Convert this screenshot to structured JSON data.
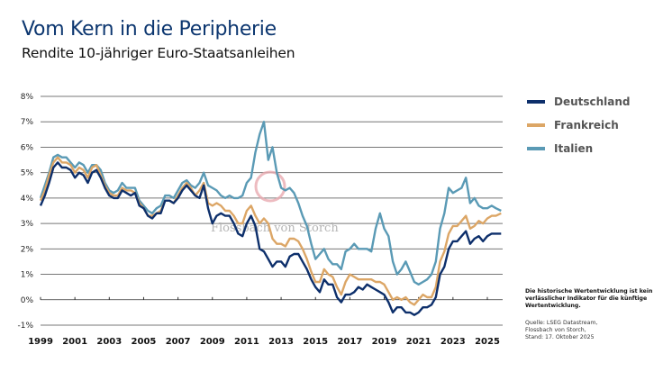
{
  "header": {
    "title": "Vom Kern in die Peripherie",
    "subtitle": "Rendite 10-jähriger Euro-Staatsanleihen"
  },
  "legend": [
    {
      "name": "Deutschland",
      "color": "#0d2f6b"
    },
    {
      "name": "Frankreich",
      "color": "#dca666"
    },
    {
      "name": "Italien",
      "color": "#5a9ab5"
    }
  ],
  "notes": {
    "disclaimer": "Die historische Wertentwicklung ist kein verlässlicher Indikator für die künftige Wertentwicklung.",
    "source_line1": "Quelle: LSEG Datastream,",
    "source_line2": "Flossbach von Storch,",
    "source_line3": "Stand: 17. Oktober 2025"
  },
  "watermark": "Flossbach von Storch",
  "chart_data": {
    "type": "line",
    "title": "Vom Kern in die Peripherie",
    "subtitle": "Rendite 10-jähriger Euro-Staatsanleihen",
    "xlabel": "",
    "ylabel": "",
    "xlim": [
      1999,
      2025.8
    ],
    "ylim": [
      -1,
      8
    ],
    "grid": true,
    "legend_position": "right",
    "x_ticks": [
      "1999",
      "2001",
      "2003",
      "2005",
      "2007",
      "2009",
      "2011",
      "2013",
      "2015",
      "2017",
      "2019",
      "2021",
      "2023",
      "2025"
    ],
    "y_ticks": [
      "8%",
      "7%",
      "6%",
      "5%",
      "4%",
      "3%",
      "2%",
      "1%",
      "0%",
      "-1%"
    ],
    "y_tick_values": [
      8,
      7,
      6,
      5,
      4,
      3,
      2,
      1,
      0,
      -1
    ],
    "x": [
      1999.0,
      1999.25,
      1999.5,
      1999.75,
      2000.0,
      2000.25,
      2000.5,
      2000.75,
      2001.0,
      2001.25,
      2001.5,
      2001.75,
      2002.0,
      2002.25,
      2002.5,
      2002.75,
      2003.0,
      2003.25,
      2003.5,
      2003.75,
      2004.0,
      2004.25,
      2004.5,
      2004.75,
      2005.0,
      2005.25,
      2005.5,
      2005.75,
      2006.0,
      2006.25,
      2006.5,
      2006.75,
      2007.0,
      2007.25,
      2007.5,
      2007.75,
      2008.0,
      2008.25,
      2008.5,
      2008.75,
      2009.0,
      2009.25,
      2009.5,
      2009.75,
      2010.0,
      2010.25,
      2010.5,
      2010.75,
      2011.0,
      2011.25,
      2011.5,
      2011.75,
      2012.0,
      2012.25,
      2012.5,
      2012.75,
      2013.0,
      2013.25,
      2013.5,
      2013.75,
      2014.0,
      2014.25,
      2014.5,
      2014.75,
      2015.0,
      2015.25,
      2015.5,
      2015.75,
      2016.0,
      2016.25,
      2016.5,
      2016.75,
      2017.0,
      2017.25,
      2017.5,
      2017.75,
      2018.0,
      2018.25,
      2018.5,
      2018.75,
      2019.0,
      2019.25,
      2019.5,
      2019.75,
      2020.0,
      2020.25,
      2020.5,
      2020.75,
      2021.0,
      2021.25,
      2021.5,
      2021.75,
      2022.0,
      2022.25,
      2022.5,
      2022.75,
      2023.0,
      2023.25,
      2023.5,
      2023.75,
      2024.0,
      2024.25,
      2024.5,
      2024.75,
      2025.0,
      2025.25,
      2025.5,
      2025.8
    ],
    "series": [
      {
        "name": "Deutschland",
        "values": [
          3.7,
          4.1,
          4.6,
          5.2,
          5.4,
          5.2,
          5.2,
          5.1,
          4.8,
          5.0,
          4.9,
          4.6,
          5.0,
          5.1,
          4.8,
          4.4,
          4.1,
          4.0,
          4.0,
          4.3,
          4.2,
          4.1,
          4.2,
          3.7,
          3.6,
          3.3,
          3.2,
          3.4,
          3.4,
          3.9,
          3.9,
          3.8,
          4.0,
          4.3,
          4.5,
          4.3,
          4.1,
          4.0,
          4.5,
          3.6,
          3.0,
          3.3,
          3.4,
          3.3,
          3.3,
          3.0,
          2.6,
          2.5,
          3.0,
          3.3,
          2.9,
          2.0,
          1.9,
          1.6,
          1.3,
          1.5,
          1.5,
          1.3,
          1.7,
          1.8,
          1.8,
          1.5,
          1.2,
          0.8,
          0.5,
          0.3,
          0.8,
          0.6,
          0.6,
          0.1,
          -0.1,
          0.2,
          0.2,
          0.3,
          0.5,
          0.4,
          0.6,
          0.5,
          0.4,
          0.3,
          0.2,
          -0.1,
          -0.5,
          -0.3,
          -0.3,
          -0.5,
          -0.5,
          -0.6,
          -0.5,
          -0.3,
          -0.3,
          -0.2,
          0.1,
          1.0,
          1.3,
          2.0,
          2.3,
          2.3,
          2.5,
          2.7,
          2.2,
          2.4,
          2.5,
          2.3,
          2.5,
          2.6,
          2.6,
          2.6
        ]
      },
      {
        "name": "Frankreich",
        "values": [
          3.9,
          4.3,
          4.9,
          5.4,
          5.6,
          5.4,
          5.4,
          5.3,
          5.0,
          5.2,
          5.1,
          4.8,
          5.2,
          5.3,
          4.9,
          4.5,
          4.2,
          4.1,
          4.1,
          4.4,
          4.3,
          4.3,
          4.2,
          3.8,
          3.6,
          3.3,
          3.3,
          3.4,
          3.5,
          3.9,
          3.9,
          3.8,
          4.1,
          4.4,
          4.6,
          4.4,
          4.1,
          4.3,
          4.6,
          3.8,
          3.7,
          3.8,
          3.7,
          3.5,
          3.5,
          3.3,
          3.0,
          3.0,
          3.5,
          3.7,
          3.3,
          3.0,
          3.2,
          3.0,
          2.4,
          2.2,
          2.2,
          2.1,
          2.4,
          2.4,
          2.3,
          2.0,
          1.6,
          1.1,
          0.7,
          0.7,
          1.2,
          1.0,
          0.9,
          0.5,
          0.2,
          0.7,
          1.0,
          0.9,
          0.8,
          0.8,
          0.8,
          0.8,
          0.7,
          0.7,
          0.6,
          0.3,
          0.0,
          0.1,
          0.0,
          0.1,
          -0.1,
          -0.2,
          0.0,
          0.2,
          0.1,
          0.1,
          0.5,
          1.5,
          1.9,
          2.6,
          2.9,
          2.9,
          3.1,
          3.3,
          2.8,
          2.9,
          3.1,
          3.0,
          3.2,
          3.3,
          3.3,
          3.4
        ]
      },
      {
        "name": "Italien",
        "values": [
          4.0,
          4.5,
          5.0,
          5.6,
          5.7,
          5.6,
          5.6,
          5.4,
          5.2,
          5.4,
          5.3,
          5.0,
          5.3,
          5.3,
          5.1,
          4.6,
          4.3,
          4.2,
          4.3,
          4.6,
          4.4,
          4.4,
          4.4,
          3.9,
          3.7,
          3.5,
          3.4,
          3.6,
          3.7,
          4.1,
          4.1,
          4.0,
          4.3,
          4.6,
          4.7,
          4.5,
          4.4,
          4.6,
          5.0,
          4.5,
          4.4,
          4.3,
          4.1,
          4.0,
          4.1,
          4.0,
          4.0,
          4.1,
          4.6,
          4.8,
          5.8,
          6.5,
          7.0,
          5.5,
          6.0,
          5.0,
          4.4,
          4.3,
          4.4,
          4.2,
          3.8,
          3.3,
          2.9,
          2.2,
          1.6,
          1.8,
          2.0,
          1.6,
          1.4,
          1.4,
          1.2,
          1.9,
          2.0,
          2.2,
          2.0,
          2.0,
          2.0,
          1.9,
          2.8,
          3.4,
          2.8,
          2.5,
          1.5,
          1.0,
          1.2,
          1.5,
          1.1,
          0.7,
          0.6,
          0.7,
          0.8,
          1.0,
          1.5,
          2.8,
          3.4,
          4.4,
          4.2,
          4.3,
          4.4,
          4.8,
          3.8,
          4.0,
          3.7,
          3.6,
          3.6,
          3.7,
          3.6,
          3.5
        ]
      }
    ]
  }
}
